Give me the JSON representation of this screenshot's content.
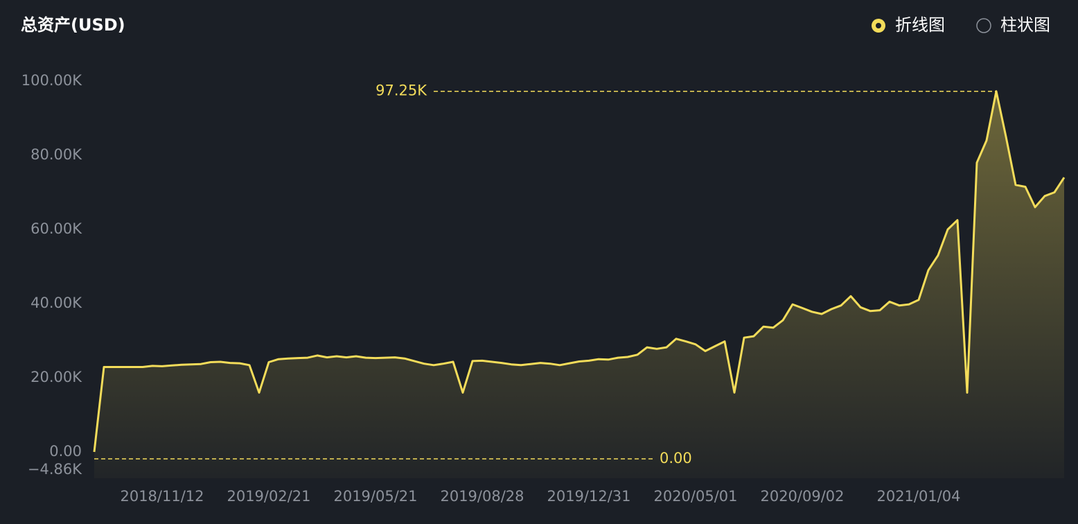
{
  "chart_data": {
    "type": "line",
    "title": "总资产(USD)",
    "toggles": [
      "折线图",
      "柱状图"
    ],
    "selected_toggle": 0,
    "color": "#f3dc5a",
    "grid": false,
    "categories": [
      null,
      null,
      null,
      null,
      null,
      null,
      null,
      "2018/11/12",
      null,
      null,
      null,
      null,
      null,
      null,
      null,
      null,
      null,
      null,
      "2019/02/21",
      null,
      null,
      null,
      null,
      null,
      null,
      null,
      null,
      null,
      null,
      "2019/05/21",
      null,
      null,
      null,
      null,
      null,
      null,
      null,
      null,
      null,
      null,
      "2019/08/28",
      null,
      null,
      null,
      null,
      null,
      null,
      null,
      null,
      null,
      null,
      "2019/12/31",
      null,
      null,
      null,
      null,
      null,
      null,
      null,
      null,
      null,
      null,
      "2020/05/01",
      null,
      null,
      null,
      null,
      null,
      null,
      null,
      null,
      null,
      null,
      "2020/09/02",
      null,
      null,
      null,
      null,
      null,
      null,
      null,
      null,
      null,
      null,
      null,
      "2021/01/04",
      null,
      null,
      null,
      null,
      null,
      null,
      null,
      null,
      null,
      null,
      null,
      null,
      null,
      null,
      null
    ],
    "values": [
      0,
      22900,
      22900,
      22900,
      22900,
      22900,
      23200,
      23100,
      23300,
      23500,
      23600,
      23700,
      24200,
      24300,
      24000,
      23900,
      23400,
      16000,
      24200,
      25000,
      25200,
      25300,
      25400,
      26000,
      25500,
      25800,
      25500,
      25800,
      25400,
      25300,
      25400,
      25500,
      25200,
      24500,
      23800,
      23400,
      23800,
      24300,
      16000,
      24500,
      24600,
      24300,
      24000,
      23600,
      23400,
      23700,
      24000,
      23800,
      23400,
      23900,
      24400,
      24600,
      25000,
      24900,
      25400,
      25600,
      26200,
      28200,
      27800,
      28200,
      30500,
      29800,
      29000,
      27200,
      28500,
      29800,
      16000,
      30800,
      31200,
      33800,
      33500,
      35500,
      39800,
      38800,
      37800,
      37200,
      38500,
      39500,
      42000,
      39000,
      38000,
      38200,
      40500,
      39500,
      39800,
      41000,
      49000,
      53000,
      60000,
      62500,
      16000,
      78000,
      84000,
      97250,
      85000,
      72000,
      71500,
      66000,
      69000,
      70000,
      74000
    ],
    "ylim": [
      -4860,
      100000
    ],
    "yticks": [
      {
        "value": -4860,
        "label": "−4.86K"
      },
      {
        "value": 0,
        "label": "0.00"
      },
      {
        "value": 20000,
        "label": "20.00K"
      },
      {
        "value": 40000,
        "label": "40.00K"
      },
      {
        "value": 60000,
        "label": "60.00K"
      },
      {
        "value": 80000,
        "label": "80.00K"
      },
      {
        "value": 100000,
        "label": "100.00K"
      }
    ],
    "annotations": [
      {
        "label": "97.25K",
        "value": 97250,
        "index": 93
      },
      {
        "label": "0.00",
        "value": 0,
        "index": 0
      }
    ]
  }
}
